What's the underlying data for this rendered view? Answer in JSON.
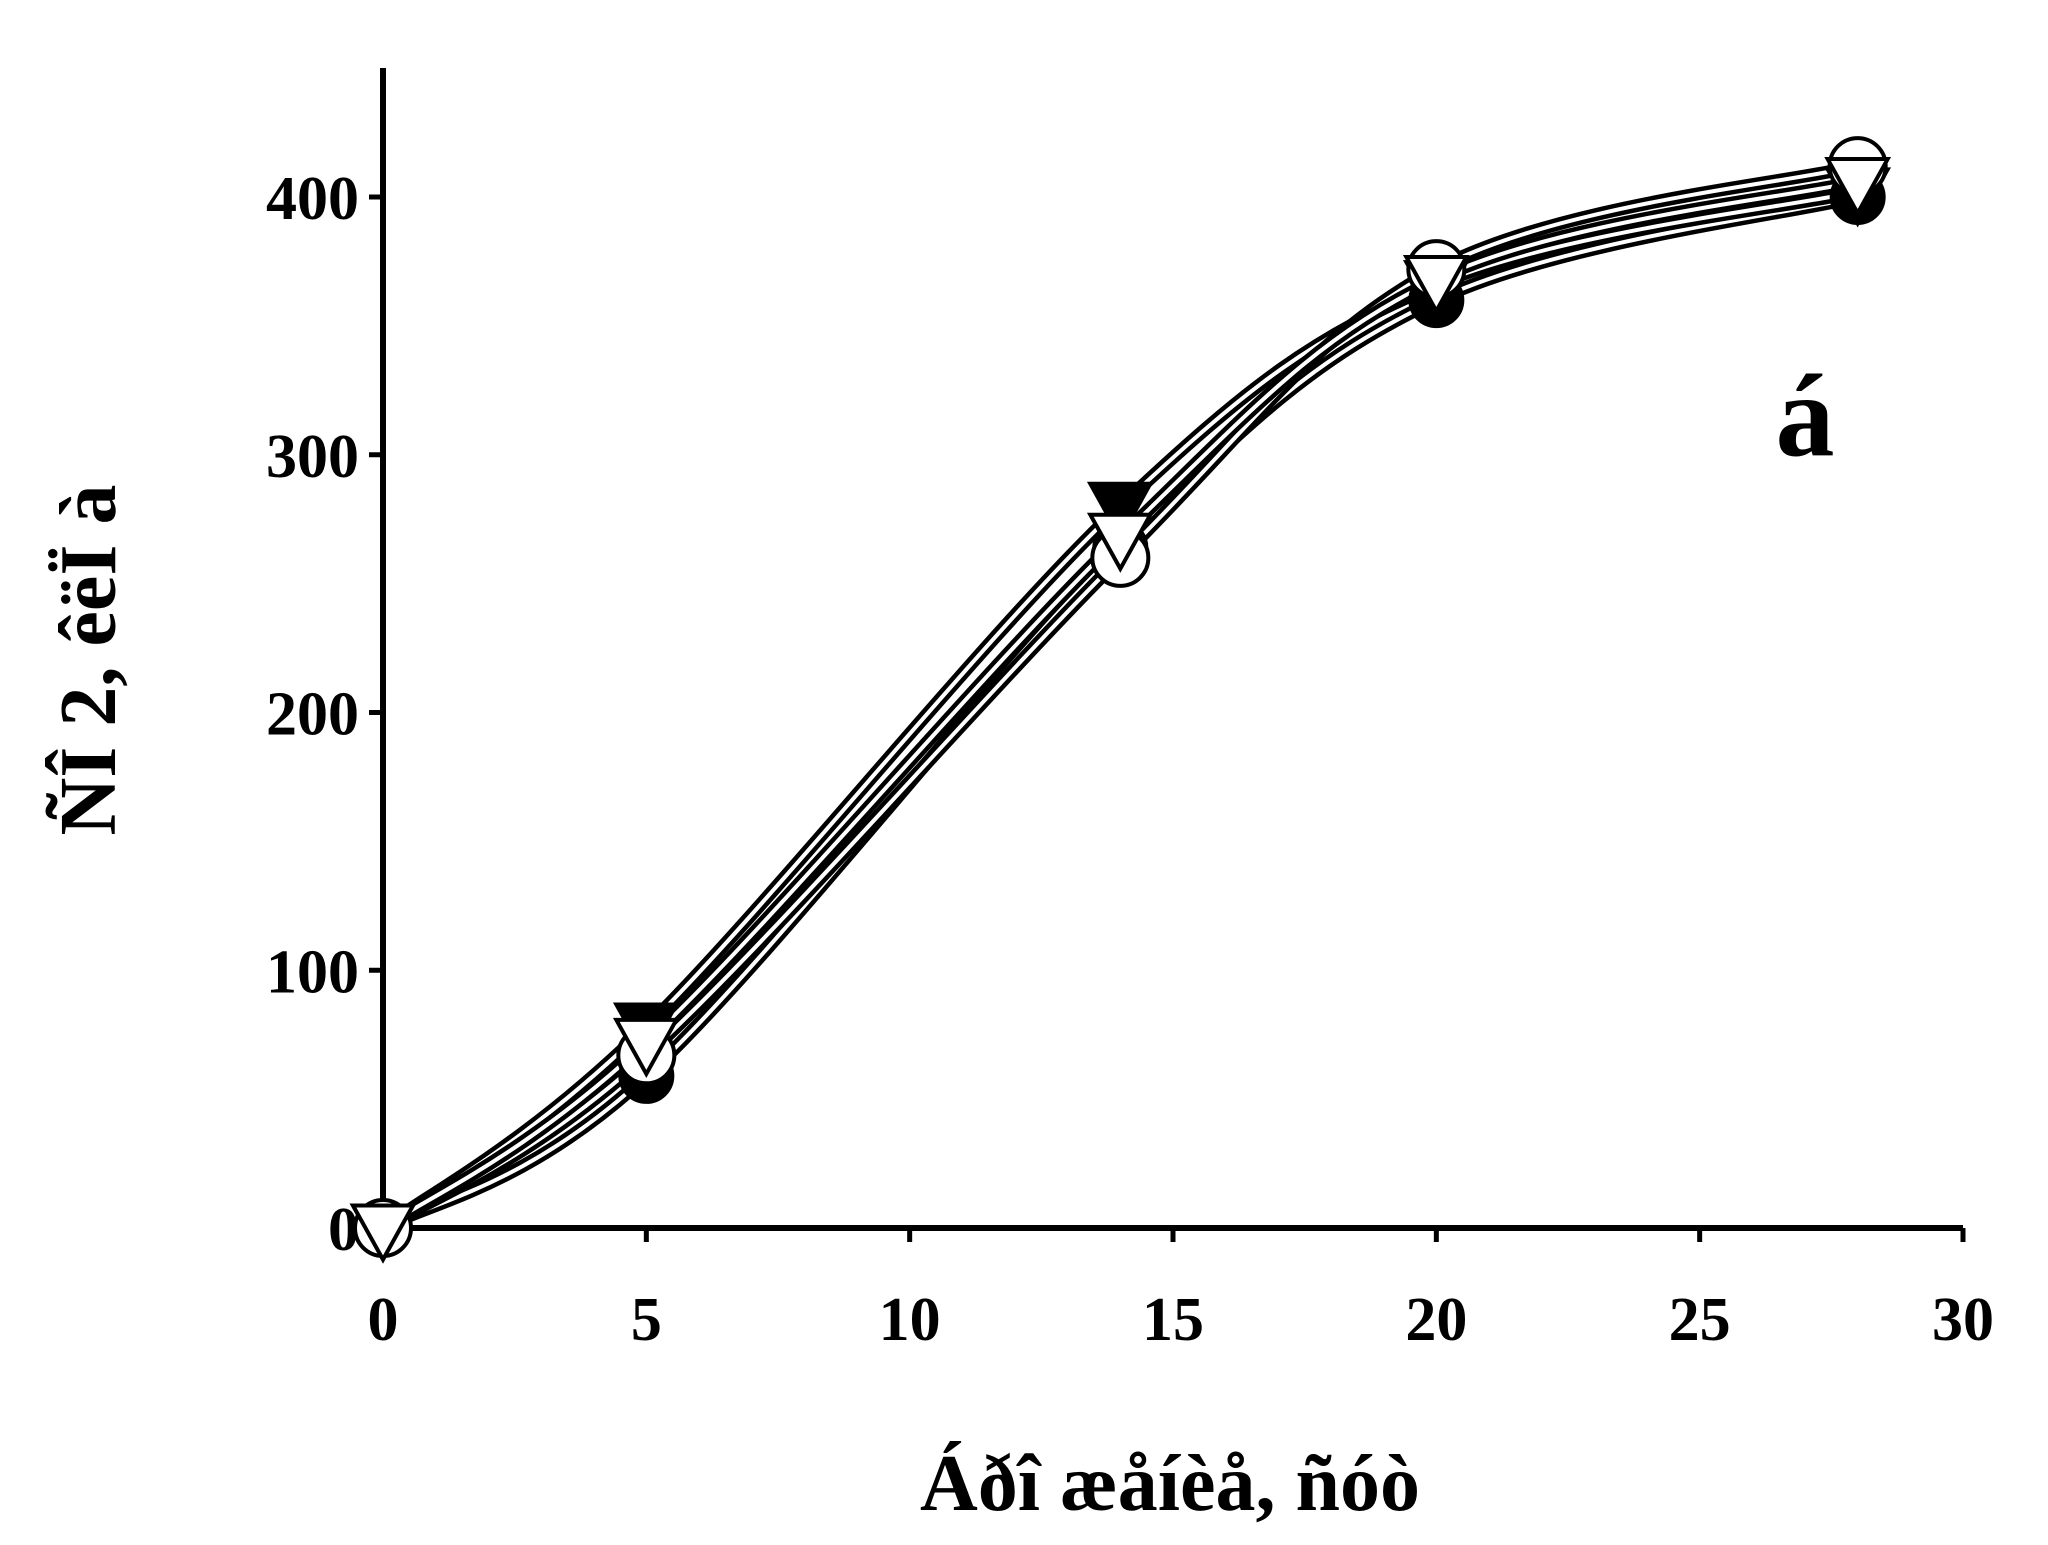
{
  "chart_data": {
    "type": "line",
    "title": "",
    "panel_label": "á",
    "xlabel": "Áðî æåíèå, ñóò",
    "ylabel": "ÑÎ 2, êëÏ à",
    "xlim": [
      0,
      30
    ],
    "ylim": [
      0,
      450
    ],
    "x_ticks": [
      0,
      5,
      10,
      15,
      20,
      25,
      30
    ],
    "y_ticks": [
      0,
      100,
      200,
      300,
      400
    ],
    "grid": false,
    "legend": "none",
    "x": [
      0,
      5,
      14,
      20,
      28
    ],
    "series": [
      {
        "marker": "filled-circle",
        "values": [
          0,
          59,
          264,
          360,
          400
        ]
      },
      {
        "marker": "filled-triangle-down",
        "values": [
          0,
          78,
          280,
          366,
          402
        ]
      },
      {
        "marker": "open-circle",
        "values": [
          0,
          67,
          260,
          372,
          412
        ]
      },
      {
        "marker": "open-triangle-down",
        "values": [
          0,
          72,
          268,
          368,
          406
        ]
      }
    ],
    "colors": {
      "line": "#000000",
      "marker_fill": "#000000",
      "open_fill": "#ffffff",
      "background": "#ffffff"
    }
  }
}
